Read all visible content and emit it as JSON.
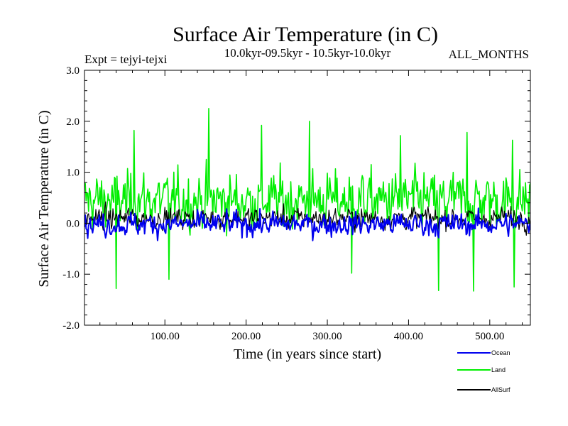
{
  "chart_data": {
    "type": "line",
    "title": "Surface Air Temperature (in C)",
    "subtitle": "10.0kyr-09.5kyr - 10.5kyr-10.0kyr",
    "expt_label": "Expt = tejyi-tejxi",
    "months_label": "ALL_MONTHS",
    "xlabel": "Time (in years since start)",
    "ylabel": "Surface Air Temperature (in C)",
    "xlim": [
      1,
      550
    ],
    "ylim": [
      -2.0,
      3.0
    ],
    "xticks": [
      100,
      200,
      300,
      400,
      500
    ],
    "xtick_labels": [
      "100.00",
      "200.00",
      "300.00",
      "400.00",
      "500.00"
    ],
    "yticks": [
      -2.0,
      -1.0,
      0.0,
      1.0,
      2.0,
      3.0
    ],
    "ytick_labels": [
      "-2.0",
      "-1.0",
      "0.0",
      "1.0",
      "2.0",
      "3.0"
    ],
    "series": [
      {
        "name": "Land",
        "color": "#00ee00",
        "x_start": 1,
        "x_end": 550,
        "n_points": 550,
        "approx_mean": 0.45,
        "approx_min": -1.3,
        "approx_max": 2.25,
        "peaks": [
          {
            "x": 62,
            "y": 1.82
          },
          {
            "x": 154,
            "y": 2.25
          },
          {
            "x": 219,
            "y": 1.92
          },
          {
            "x": 278,
            "y": 2.0
          },
          {
            "x": 390,
            "y": 1.72
          },
          {
            "x": 472,
            "y": 1.78
          },
          {
            "x": 528,
            "y": 1.63
          }
        ],
        "troughs": [
          {
            "x": 40,
            "y": -1.28
          },
          {
            "x": 105,
            "y": -1.1
          },
          {
            "x": 330,
            "y": -0.98
          },
          {
            "x": 437,
            "y": -1.32
          },
          {
            "x": 480,
            "y": -1.33
          },
          {
            "x": 530,
            "y": -1.25
          }
        ]
      },
      {
        "name": "Ocean",
        "color": "#0000ee",
        "x_start": 1,
        "x_end": 550,
        "n_points": 550,
        "approx_mean": -0.02,
        "approx_min": -0.65,
        "approx_max": 0.45
      },
      {
        "name": "AllSurf",
        "color": "#000000",
        "x_start": 1,
        "x_end": 550,
        "n_points": 550,
        "approx_mean": 0.1,
        "approx_min": -0.5,
        "approx_max": 0.5
      }
    ],
    "legend": {
      "placement": "bottom-right",
      "entries": [
        {
          "label": "Ocean",
          "color": "#0000ee"
        },
        {
          "label": "Land",
          "color": "#00ee00"
        },
        {
          "label": "AllSurf",
          "color": "#000000"
        }
      ]
    }
  }
}
